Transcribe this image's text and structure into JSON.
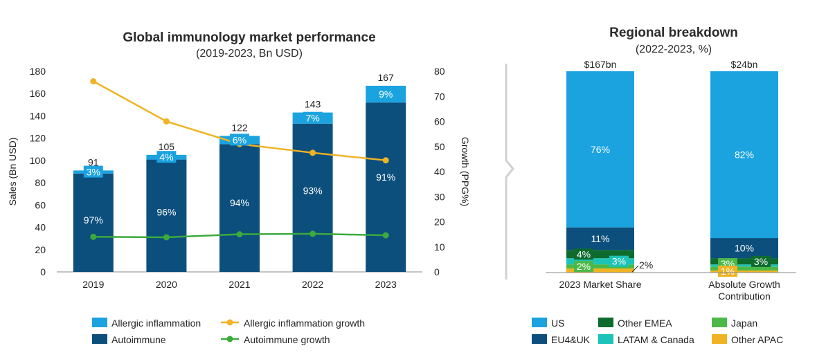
{
  "colors": {
    "allergic": "#1ba3e0",
    "autoimmune": "#0c4f7d",
    "allergic_growth": "#f0b323",
    "autoimmune_growth": "#3caa3c",
    "us": "#1ba3e0",
    "eu4uk": "#0c4f7d",
    "other_emea": "#0d6b2e",
    "latam_canada": "#1cc3b8",
    "japan": "#4cb848",
    "other_apac": "#f0b323",
    "divider": "#d0d0d0"
  },
  "chart_data": [
    {
      "type": "bar",
      "title": "Global immunology market performance",
      "subtitle": "(2019-2023, Bn USD)",
      "xlabel": "",
      "ylabel": "Sales (Bn USD)",
      "ylabel_right": "Growth (PPG%)",
      "ylim": [
        0,
        180
      ],
      "yticks": [
        "0",
        "20",
        "40",
        "60",
        "80",
        "100",
        "120",
        "140",
        "160",
        "180"
      ],
      "ylim_right": [
        0,
        80
      ],
      "yticks_right": [
        "0",
        "10",
        "20",
        "30",
        "40",
        "50",
        "60",
        "70",
        "80"
      ],
      "categories": [
        "2019",
        "2020",
        "2021",
        "2022",
        "2023"
      ],
      "totals": [
        "91",
        "105",
        "122",
        "143",
        "167"
      ],
      "total_values": [
        91,
        105,
        122,
        143,
        167
      ],
      "series": [
        {
          "name": "Autoimmune",
          "share_labels": [
            "97%",
            "96%",
            "94%",
            "93%",
            "91%"
          ],
          "share_values": [
            97,
            96,
            94,
            93,
            91
          ]
        },
        {
          "name": "Allergic inflammation",
          "share_labels": [
            "3%",
            "4%",
            "6%",
            "7%",
            "9%"
          ],
          "share_values": [
            3,
            4,
            6,
            7,
            9
          ]
        }
      ],
      "lines": [
        {
          "name": "Allergic inflammation growth",
          "values": [
            76,
            60,
            51,
            47.5,
            44.5
          ]
        },
        {
          "name": "Autoimmune growth",
          "values": [
            14,
            13.8,
            15,
            15.2,
            14.6
          ]
        }
      ],
      "legend": [
        "Allergic inflammation",
        "Autoimmune",
        "Allergic inflammation growth",
        "Autoimmune growth"
      ],
      "grid": false,
      "legend_position": "bottom"
    },
    {
      "type": "bar",
      "title": "Regional breakdown",
      "subtitle": "(2022-2023, %)",
      "categories": [
        "2023 Market Share",
        "Absolute Growth Contribution"
      ],
      "category_lines": [
        [
          "2023 Market Share"
        ],
        [
          "Absolute Growth",
          "Contribution"
        ]
      ],
      "totals": [
        "$167bn",
        "$24bn"
      ],
      "series": [
        {
          "name": "Other APAC",
          "values": [
            2,
            1
          ],
          "labels": [
            "2%",
            "1%"
          ]
        },
        {
          "name": "Japan",
          "values": [
            2,
            2
          ],
          "labels": [
            "2%",
            ""
          ]
        },
        {
          "name": "LATAM & Canada",
          "values": [
            3,
            1
          ],
          "labels": [
            "3%",
            ""
          ]
        },
        {
          "name": "Other EMEA",
          "values": [
            4,
            3
          ],
          "labels": [
            "4%",
            "3%"
          ]
        },
        {
          "name": "EU4&UK",
          "values": [
            11,
            10
          ],
          "labels": [
            "11%",
            "10%"
          ]
        },
        {
          "name": "US",
          "values": [
            76,
            82
          ],
          "labels": [
            "76%",
            "82%"
          ]
        }
      ],
      "extra_labels": [
        "2%",
        "3%"
      ],
      "legend": [
        "US",
        "Other EMEA",
        "Japan",
        "EU4&UK",
        "LATAM & Canada",
        "Other APAC"
      ],
      "legend_position": "bottom"
    }
  ]
}
